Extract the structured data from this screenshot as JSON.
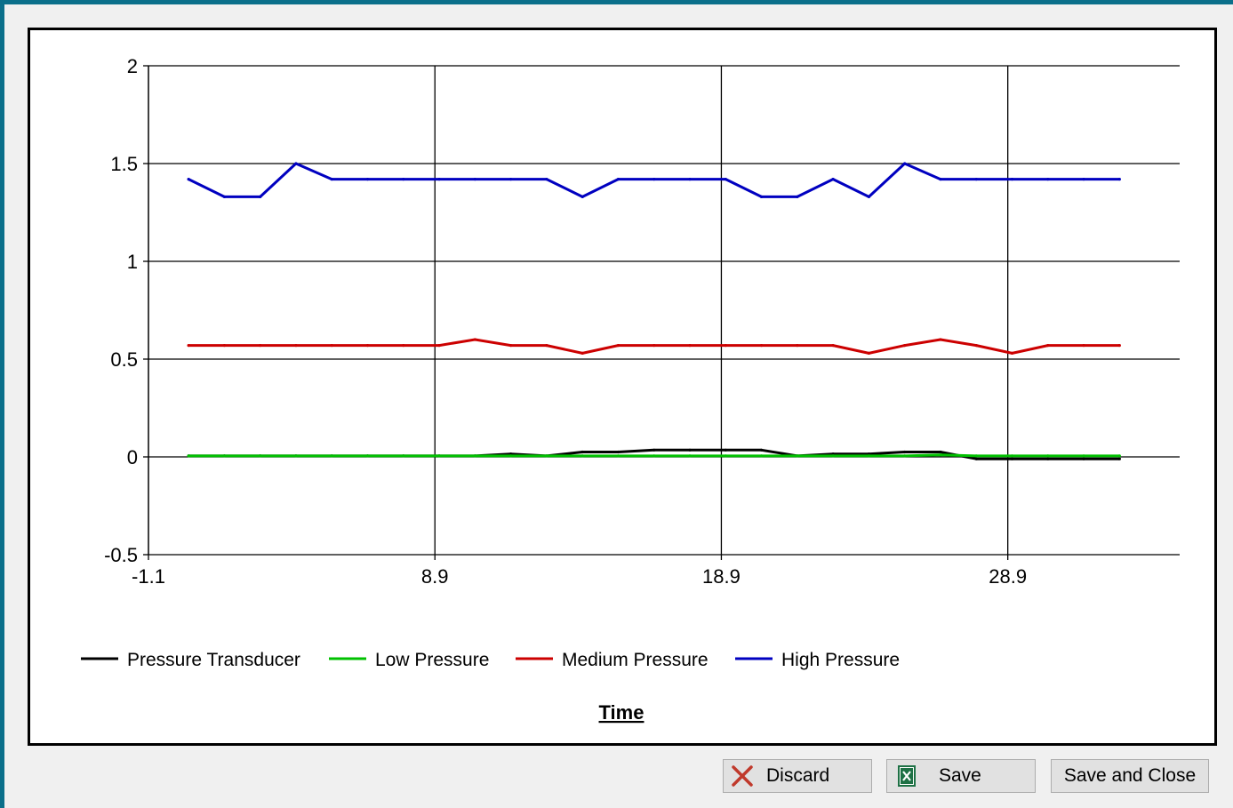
{
  "buttons": {
    "discard": "Discard",
    "save": "Save",
    "save_close": "Save and Close"
  },
  "icons": {
    "discard": "close-x-icon",
    "save": "excel-icon"
  },
  "colors": {
    "frame": "#0a6f8a",
    "discard_x": "#c0392b",
    "excel_green": "#1e7145"
  },
  "chart_data": {
    "type": "line",
    "title": "",
    "xlabel": "Time",
    "ylabel": "",
    "xlim": [
      -1.1,
      34.9
    ],
    "ylim": [
      -0.5,
      2
    ],
    "xticks": [
      "-1.1",
      "8.9",
      "18.9",
      "28.9"
    ],
    "yticks": [
      "2",
      "1.5",
      "1",
      "0.5",
      "0",
      "-0.5"
    ],
    "xtick_values": [
      -1.1,
      8.9,
      18.9,
      28.9
    ],
    "ytick_values": [
      2,
      1.5,
      1,
      0.5,
      0,
      -0.5
    ],
    "grid": true,
    "legend_position": "bottom-left",
    "x": [
      0.3,
      1.55,
      2.8,
      4.05,
      5.3,
      6.55,
      7.8,
      9.05,
      10.3,
      11.55,
      12.8,
      14.05,
      15.3,
      16.55,
      17.8,
      19.05,
      20.3,
      21.55,
      22.8,
      24.05,
      25.3,
      26.55,
      27.8,
      29.05,
      30.3,
      31.55,
      32.8
    ],
    "series": [
      {
        "name": "Pressure Transducer",
        "color": "#000000",
        "values": [
          0.005,
          0.005,
          0.005,
          0.005,
          0.005,
          0.005,
          0.005,
          0.005,
          0.005,
          0.015,
          0.005,
          0.025,
          0.025,
          0.035,
          0.035,
          0.035,
          0.035,
          0.005,
          0.015,
          0.015,
          0.025,
          0.025,
          -0.01,
          -0.01,
          -0.01,
          -0.01,
          -0.01
        ]
      },
      {
        "name": "Low Pressure",
        "color": "#00c000",
        "values": [
          0.005,
          0.005,
          0.005,
          0.005,
          0.005,
          0.005,
          0.005,
          0.005,
          0.005,
          0.005,
          0.005,
          0.005,
          0.005,
          0.005,
          0.005,
          0.005,
          0.005,
          0.005,
          0.005,
          0.005,
          0.005,
          0.01,
          0.005,
          0.005,
          0.005,
          0.005,
          0.005
        ]
      },
      {
        "name": "Medium Pressure",
        "color": "#cc0000",
        "values": [
          0.57,
          0.57,
          0.57,
          0.57,
          0.57,
          0.57,
          0.57,
          0.57,
          0.6,
          0.57,
          0.57,
          0.53,
          0.57,
          0.57,
          0.57,
          0.57,
          0.57,
          0.57,
          0.57,
          0.53,
          0.57,
          0.6,
          0.57,
          0.53,
          0.57,
          0.57,
          0.57
        ]
      },
      {
        "name": "High Pressure",
        "color": "#0000c0",
        "values": [
          1.42,
          1.33,
          1.33,
          1.5,
          1.42,
          1.42,
          1.42,
          1.42,
          1.42,
          1.42,
          1.42,
          1.33,
          1.42,
          1.42,
          1.42,
          1.42,
          1.33,
          1.33,
          1.42,
          1.33,
          1.5,
          1.42,
          1.42,
          1.42,
          1.42,
          1.42,
          1.42
        ]
      }
    ]
  }
}
